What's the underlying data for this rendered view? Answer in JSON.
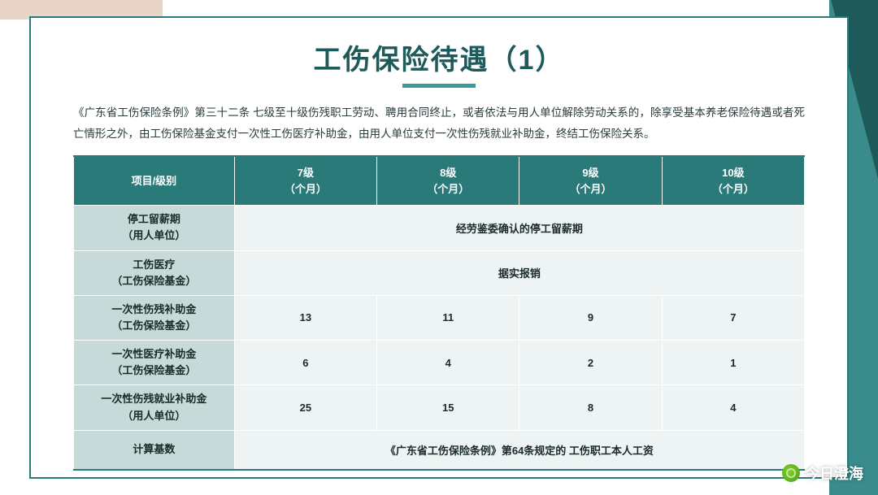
{
  "title": "工伤保险待遇（1）",
  "description": "《广东省工伤保险条例》第三十二条 七级至十级伤残职工劳动、聘用合同终止，或者依法与用人单位解除劳动关系的，除享受基本养老保险待遇或者死亡情形之外，由工伤保险基金支付一次性工伤医疗补助金，由用人单位支付一次性伤残就业补助金，终结工伤保险关系。",
  "table": {
    "corner": "项目/级别",
    "columns": [
      {
        "level": "7级",
        "unit": "（个月）"
      },
      {
        "level": "8级",
        "unit": "（个月）"
      },
      {
        "level": "9级",
        "unit": "（个月）"
      },
      {
        "level": "10级",
        "unit": "（个月）"
      }
    ],
    "rows": [
      {
        "name_l1": "停工留薪期",
        "name_l2": "（用人单位）",
        "merged": "经劳鉴委确认的停工留薪期"
      },
      {
        "name_l1": "工伤医疗",
        "name_l2": "（工伤保险基金）",
        "merged": "据实报销"
      },
      {
        "name_l1": "一次性伤残补助金",
        "name_l2": "（工伤保险基金）",
        "vals": [
          "13",
          "11",
          "9",
          "7"
        ]
      },
      {
        "name_l1": "一次性医疗补助金",
        "name_l2": "（工伤保险基金）",
        "vals": [
          "6",
          "4",
          "2",
          "1"
        ]
      },
      {
        "name_l1": "一次性伤残就业补助金",
        "name_l2": "（用人单位）",
        "vals": [
          "25",
          "15",
          "8",
          "4"
        ]
      }
    ],
    "footer_label": "计算基数",
    "footer_text": "《广东省工伤保险条例》第64条规定的 工伤职工本人工资"
  },
  "watermark": "今日澄海",
  "colors": {
    "teal_dark": "#2a7a7a",
    "teal_light": "#c6dbd9",
    "cell_bg": "#eef4f3",
    "page_bg": "#ffffff",
    "accent_tan": "#e8d5c8"
  }
}
